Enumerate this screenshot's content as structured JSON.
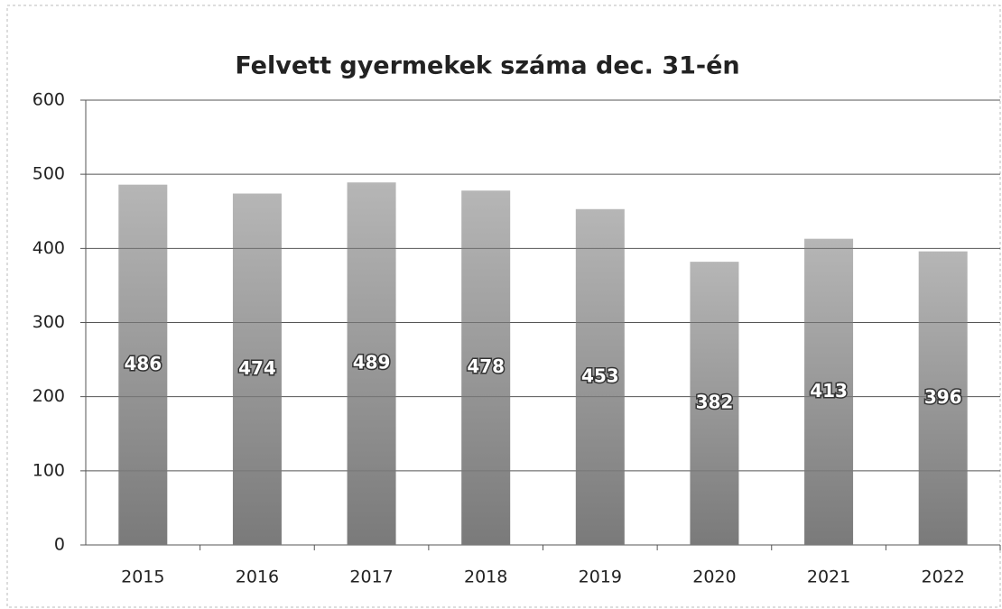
{
  "chart_data": {
    "type": "bar",
    "title": "Felvett gyermekek száma dec. 31-én",
    "categories": [
      "2015",
      "2016",
      "2017",
      "2018",
      "2019",
      "2020",
      "2021",
      "2022"
    ],
    "values": [
      486,
      474,
      489,
      478,
      453,
      382,
      413,
      396
    ],
    "color": "#7a7a7a",
    "ylim": [
      0,
      600
    ],
    "yticks": [
      0,
      100,
      200,
      300,
      400,
      500,
      600
    ],
    "grid": true
  }
}
